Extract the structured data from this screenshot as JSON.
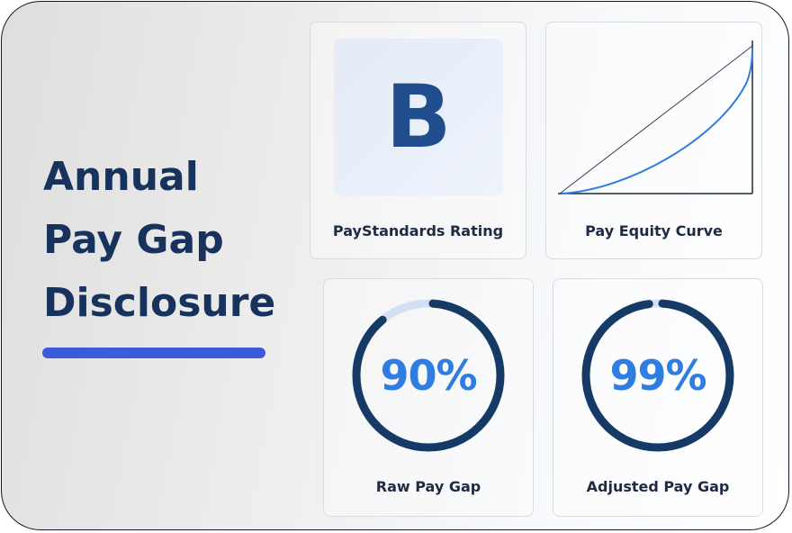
{
  "title": {
    "lines": [
      "Annual",
      "Pay Gap",
      "Disclosure"
    ]
  },
  "cards": {
    "rating": {
      "label": "PayStandards Rating",
      "letter": "B"
    },
    "curve": {
      "label": "Pay Equity Curve"
    },
    "raw": {
      "label": "Raw Pay Gap",
      "value_text": "90%",
      "fraction": 0.9
    },
    "adjusted": {
      "label": "Adjusted Pay Gap",
      "value_text": "99%",
      "fraction": 0.99
    }
  },
  "colors": {
    "title": "#17325c",
    "accent_bar": "#3b5bdb",
    "rating_letter": "#1f4d8e",
    "ring": "#163a66",
    "ring_track": "#d3e0f3",
    "percent_text": "#2f7de1",
    "curve": "#2f7de1"
  },
  "icons": {
    "equity_chart": "lorenz-curve-icon"
  }
}
